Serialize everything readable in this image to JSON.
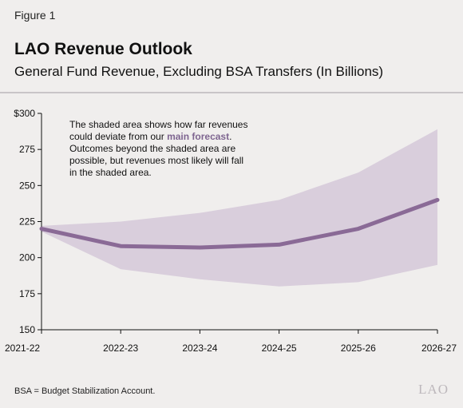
{
  "figure_label": "Figure 1",
  "footnote": "BSA = Budget Stabilization Account.",
  "logo_text": "LAO",
  "colors": {
    "background": "#f0eeed",
    "band": "#d9cedc",
    "line": "#8a6a96",
    "annotation_highlight": "#7e6590",
    "rule": "#c9c5c7"
  },
  "chart_data": {
    "type": "area",
    "title": "LAO Revenue Outlook",
    "subtitle": "General Fund Revenue, Excluding BSA Transfers (In Billions)",
    "categories": [
      "2021-22",
      "2022-23",
      "2023-24",
      "2024-25",
      "2025-26",
      "2026-27"
    ],
    "series": [
      {
        "role": "main-forecast",
        "values": [
          220,
          208,
          207,
          209,
          220,
          240
        ]
      },
      {
        "role": "band-upper",
        "values": [
          222,
          225,
          231,
          240,
          259,
          289
        ]
      },
      {
        "role": "band-lower",
        "values": [
          218,
          192,
          185,
          180,
          183,
          195
        ]
      }
    ],
    "ylim": [
      150,
      300
    ],
    "yticks": [
      300,
      275,
      250,
      225,
      200,
      175,
      150
    ],
    "ytick_labels": [
      "$300",
      "275",
      "250",
      "225",
      "200",
      "175",
      "150"
    ],
    "grid": false,
    "annotation": {
      "lines": [
        [
          {
            "text": "The shaded area shows how far revenues",
            "bold": false
          }
        ],
        [
          {
            "text": "could deviate from our ",
            "bold": false
          },
          {
            "text": "main forecast",
            "bold": true
          },
          {
            "text": ".",
            "bold": false
          }
        ],
        [
          {
            "text": "Outcomes beyond the shaded area are",
            "bold": false
          }
        ],
        [
          {
            "text": "possible, but revenues most likely will fall",
            "bold": false
          }
        ],
        [
          {
            "text": "in the shaded area.",
            "bold": false
          }
        ]
      ]
    }
  }
}
